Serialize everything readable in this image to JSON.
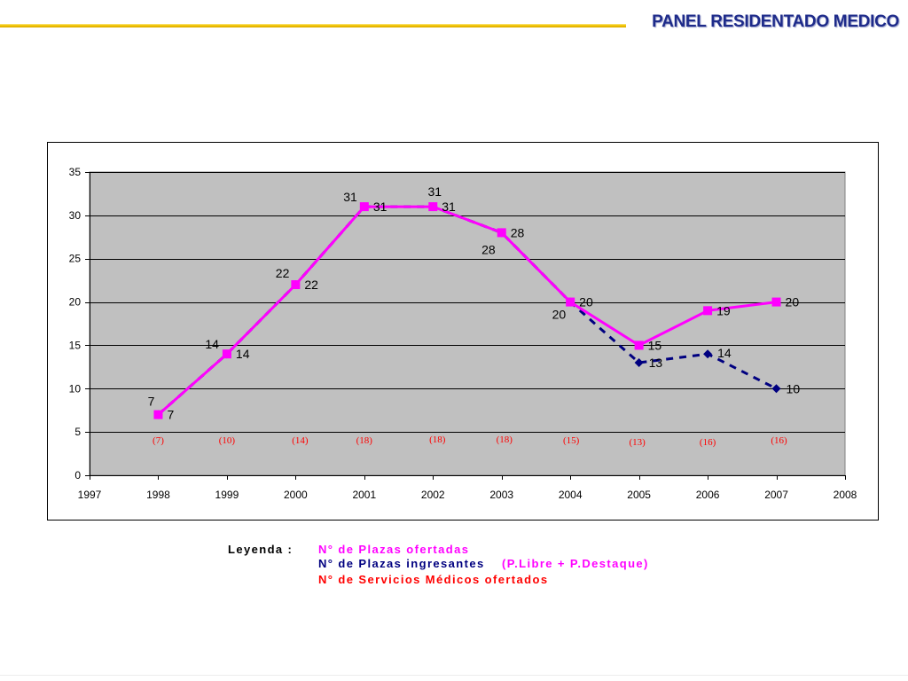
{
  "header": {
    "title": "PANEL RESIDENTADO MEDICO"
  },
  "colors": {
    "header_text": "#1e2b8a",
    "accent_line": "#f2c400",
    "plot_background": "#c0c0c0",
    "gridline": "#000000",
    "legend_heading": "#000000"
  },
  "chart_data": {
    "type": "line",
    "x": [
      1998,
      1999,
      2000,
      2001,
      2002,
      2003,
      2004,
      2005,
      2006,
      2007
    ],
    "xlim": [
      1997,
      2008
    ],
    "xticks": [
      1997,
      1998,
      1999,
      2000,
      2001,
      2002,
      2003,
      2004,
      2005,
      2006,
      2007,
      2008
    ],
    "ylim": [
      0,
      35
    ],
    "yticks": [
      0,
      5,
      10,
      15,
      20,
      25,
      30,
      35
    ],
    "grid": "horizontal",
    "legend_position": "bottom",
    "data_label_color": "#000000",
    "series": [
      {
        "name": "N° de Plazas ofertadas",
        "values": [
          7,
          14,
          22,
          31,
          31,
          28,
          20,
          15,
          19,
          20
        ],
        "color": "#ff00ff",
        "marker": "square",
        "line_style": "solid"
      },
      {
        "name": "N° de Plazas ingresantes",
        "values": [
          7,
          14,
          22,
          31,
          31,
          28,
          20,
          13,
          14,
          10
        ],
        "color": "#000080",
        "marker": "diamond",
        "line_style": "dashed"
      },
      {
        "name": "N° de Servicios Médicos ofertados",
        "values": [
          7,
          10,
          14,
          18,
          18,
          18,
          15,
          13,
          16,
          16
        ],
        "color": "#ff0000",
        "marker": "none",
        "line_style": "none"
      }
    ]
  },
  "legend": {
    "heading": "Leyenda :",
    "ingresantes_note": "(P.Libre + P.Destaque)",
    "ingresantes_note_color": "#ff00ff"
  }
}
